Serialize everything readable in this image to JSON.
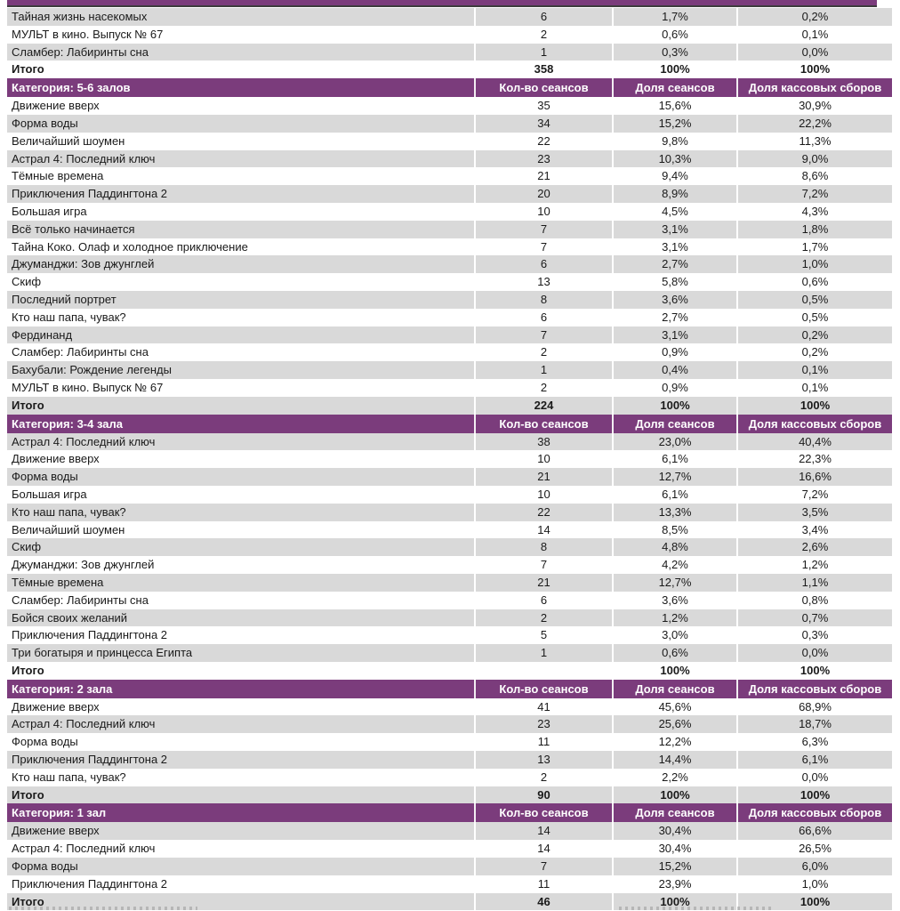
{
  "accent_color": "#7B3C7C",
  "shade_color": "#D9D9D9",
  "table": {
    "columns": [
      "Кол-во сеансов",
      "Доля сеансов",
      "Доля кассовых сборов"
    ],
    "sections": [
      {
        "category": null,
        "rows": [
          {
            "title": "Тайная жизнь насекомых",
            "sessions": "6",
            "sessions_share": "1,7%",
            "box_office_share": "0,2%",
            "shaded": true
          },
          {
            "title": "МУЛЬТ в кино. Выпуск № 67",
            "sessions": "2",
            "sessions_share": "0,6%",
            "box_office_share": "0,1%"
          },
          {
            "title": "Сламбер: Лабиринты сна",
            "sessions": "1",
            "sessions_share": "0,3%",
            "box_office_share": "0,0%",
            "shaded": true
          },
          {
            "title": "Итого",
            "sessions": "358",
            "sessions_share": "100%",
            "box_office_share": "100%",
            "total": true
          }
        ]
      },
      {
        "category": "Категория: 5-6 залов",
        "rows": [
          {
            "title": "Движение вверх",
            "sessions": "35",
            "sessions_share": "15,6%",
            "box_office_share": "30,9%"
          },
          {
            "title": "Форма воды",
            "sessions": "34",
            "sessions_share": "15,2%",
            "box_office_share": "22,2%",
            "shaded": true
          },
          {
            "title": "Величайший шоумен",
            "sessions": "22",
            "sessions_share": "9,8%",
            "box_office_share": "11,3%"
          },
          {
            "title": "Астрал 4: Последний ключ",
            "sessions": "23",
            "sessions_share": "10,3%",
            "box_office_share": "9,0%",
            "shaded": true
          },
          {
            "title": "Тёмные времена",
            "sessions": "21",
            "sessions_share": "9,4%",
            "box_office_share": "8,6%"
          },
          {
            "title": "Приключения Паддингтона 2",
            "sessions": "20",
            "sessions_share": "8,9%",
            "box_office_share": "7,2%",
            "shaded": true
          },
          {
            "title": "Большая игра",
            "sessions": "10",
            "sessions_share": "4,5%",
            "box_office_share": "4,3%"
          },
          {
            "title": "Всё только начинается",
            "sessions": "7",
            "sessions_share": "3,1%",
            "box_office_share": "1,8%",
            "shaded": true
          },
          {
            "title": "Тайна Коко. Олаф и холодное приключение",
            "sessions": "7",
            "sessions_share": "3,1%",
            "box_office_share": "1,7%"
          },
          {
            "title": "Джуманджи: Зов джунглей",
            "sessions": "6",
            "sessions_share": "2,7%",
            "box_office_share": "1,0%",
            "shaded": true
          },
          {
            "title": "Скиф",
            "sessions": "13",
            "sessions_share": "5,8%",
            "box_office_share": "0,6%"
          },
          {
            "title": "Последний портрет",
            "sessions": "8",
            "sessions_share": "3,6%",
            "box_office_share": "0,5%",
            "shaded": true
          },
          {
            "title": "Кто наш папа, чувак?",
            "sessions": "6",
            "sessions_share": "2,7%",
            "box_office_share": "0,5%"
          },
          {
            "title": "Фердинанд",
            "sessions": "7",
            "sessions_share": "3,1%",
            "box_office_share": "0,2%",
            "shaded": true
          },
          {
            "title": "Сламбер: Лабиринты сна",
            "sessions": "2",
            "sessions_share": "0,9%",
            "box_office_share": "0,2%"
          },
          {
            "title": "Бахубали: Рождение легенды",
            "sessions": "1",
            "sessions_share": "0,4%",
            "box_office_share": "0,1%",
            "shaded": true
          },
          {
            "title": "МУЛЬТ в кино. Выпуск № 67",
            "sessions": "2",
            "sessions_share": "0,9%",
            "box_office_share": "0,1%"
          },
          {
            "title": "Итого",
            "sessions": "224",
            "sessions_share": "100%",
            "box_office_share": "100%",
            "total": true,
            "shaded": true
          }
        ]
      },
      {
        "category": "Категория: 3-4 зала",
        "rows": [
          {
            "title": "Астрал 4: Последний ключ",
            "sessions": "38",
            "sessions_share": "23,0%",
            "box_office_share": "40,4%",
            "shaded": true
          },
          {
            "title": "Движение вверх",
            "sessions": "10",
            "sessions_share": "6,1%",
            "box_office_share": "22,3%"
          },
          {
            "title": "Форма воды",
            "sessions": "21",
            "sessions_share": "12,7%",
            "box_office_share": "16,6%",
            "shaded": true
          },
          {
            "title": "Большая игра",
            "sessions": "10",
            "sessions_share": "6,1%",
            "box_office_share": "7,2%"
          },
          {
            "title": "Кто наш папа, чувак?",
            "sessions": "22",
            "sessions_share": "13,3%",
            "box_office_share": "3,5%",
            "shaded": true
          },
          {
            "title": "Величайший шоумен",
            "sessions": "14",
            "sessions_share": "8,5%",
            "box_office_share": "3,4%"
          },
          {
            "title": "Скиф",
            "sessions": "8",
            "sessions_share": "4,8%",
            "box_office_share": "2,6%",
            "shaded": true
          },
          {
            "title": "Джуманджи: Зов джунглей",
            "sessions": "7",
            "sessions_share": "4,2%",
            "box_office_share": "1,2%"
          },
          {
            "title": "Тёмные времена",
            "sessions": "21",
            "sessions_share": "12,7%",
            "box_office_share": "1,1%",
            "shaded": true
          },
          {
            "title": "Сламбер: Лабиринты сна",
            "sessions": "6",
            "sessions_share": "3,6%",
            "box_office_share": "0,8%"
          },
          {
            "title": "Бойся своих желаний",
            "sessions": "2",
            "sessions_share": "1,2%",
            "box_office_share": "0,7%",
            "shaded": true
          },
          {
            "title": "Приключения Паддингтона 2",
            "sessions": "5",
            "sessions_share": "3,0%",
            "box_office_share": "0,3%"
          },
          {
            "title": "Три богатыря и принцесса Египта",
            "sessions": "1",
            "sessions_share": "0,6%",
            "box_office_share": "0,0%",
            "shaded": true
          },
          {
            "title": "Итого",
            "sessions": "",
            "sessions_share": "100%",
            "box_office_share": "100%",
            "total": true
          }
        ]
      },
      {
        "category": "Категория: 2 зала",
        "rows": [
          {
            "title": "Движение вверх",
            "sessions": "41",
            "sessions_share": "45,6%",
            "box_office_share": "68,9%"
          },
          {
            "title": "Астрал 4: Последний ключ",
            "sessions": "23",
            "sessions_share": "25,6%",
            "box_office_share": "18,7%",
            "shaded": true
          },
          {
            "title": "Форма воды",
            "sessions": "11",
            "sessions_share": "12,2%",
            "box_office_share": "6,3%"
          },
          {
            "title": "Приключения Паддингтона 2",
            "sessions": "13",
            "sessions_share": "14,4%",
            "box_office_share": "6,1%",
            "shaded": true
          },
          {
            "title": "Кто наш папа, чувак?",
            "sessions": "2",
            "sessions_share": "2,2%",
            "box_office_share": "0,0%"
          },
          {
            "title": "Итого",
            "sessions": "90",
            "sessions_share": "100%",
            "box_office_share": "100%",
            "total": true,
            "shaded": true
          }
        ]
      },
      {
        "category": "Категория: 1 зал",
        "rows": [
          {
            "title": "Движение вверх",
            "sessions": "14",
            "sessions_share": "30,4%",
            "box_office_share": "66,6%",
            "shaded": true
          },
          {
            "title": "Астрал 4: Последний ключ",
            "sessions": "14",
            "sessions_share": "30,4%",
            "box_office_share": "26,5%"
          },
          {
            "title": "Форма воды",
            "sessions": "7",
            "sessions_share": "15,2%",
            "box_office_share": "6,0%",
            "shaded": true
          },
          {
            "title": "Приключения Паддингтона 2",
            "sessions": "11",
            "sessions_share": "23,9%",
            "box_office_share": "1,0%"
          },
          {
            "title": "Итого",
            "sessions": "46",
            "sessions_share": "100%",
            "box_office_share": "100%",
            "total": true,
            "shaded": true
          }
        ]
      }
    ]
  }
}
